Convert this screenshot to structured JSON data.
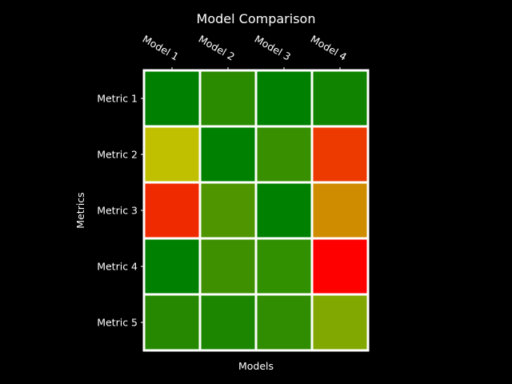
{
  "chart_data": {
    "type": "heatmap",
    "title": "Model Comparison",
    "xlabel": "Models",
    "ylabel": "Metrics",
    "x_categories": [
      "Model 1",
      "Model 2",
      "Model 3",
      "Model 4"
    ],
    "y_categories": [
      "Metric 1",
      "Metric 2",
      "Metric 3",
      "Metric 4",
      "Metric 5"
    ],
    "x_axis_position": "top",
    "grid": false,
    "legend": "none",
    "colormap": [
      "#ff0000",
      "#ffff00",
      "#008000"
    ],
    "cell_colors": [
      [
        "#008000",
        "#2a8a00",
        "#008000",
        "#108400"
      ],
      [
        "#c0c000",
        "#008000",
        "#389000",
        "#ec3a00"
      ],
      [
        "#f02a00",
        "#4e9500",
        "#008000",
        "#d08c00"
      ],
      [
        "#008000",
        "#3f9000",
        "#309000",
        "#ff0000"
      ],
      [
        "#268800",
        "#1c8600",
        "#308c00",
        "#80a800"
      ]
    ]
  }
}
